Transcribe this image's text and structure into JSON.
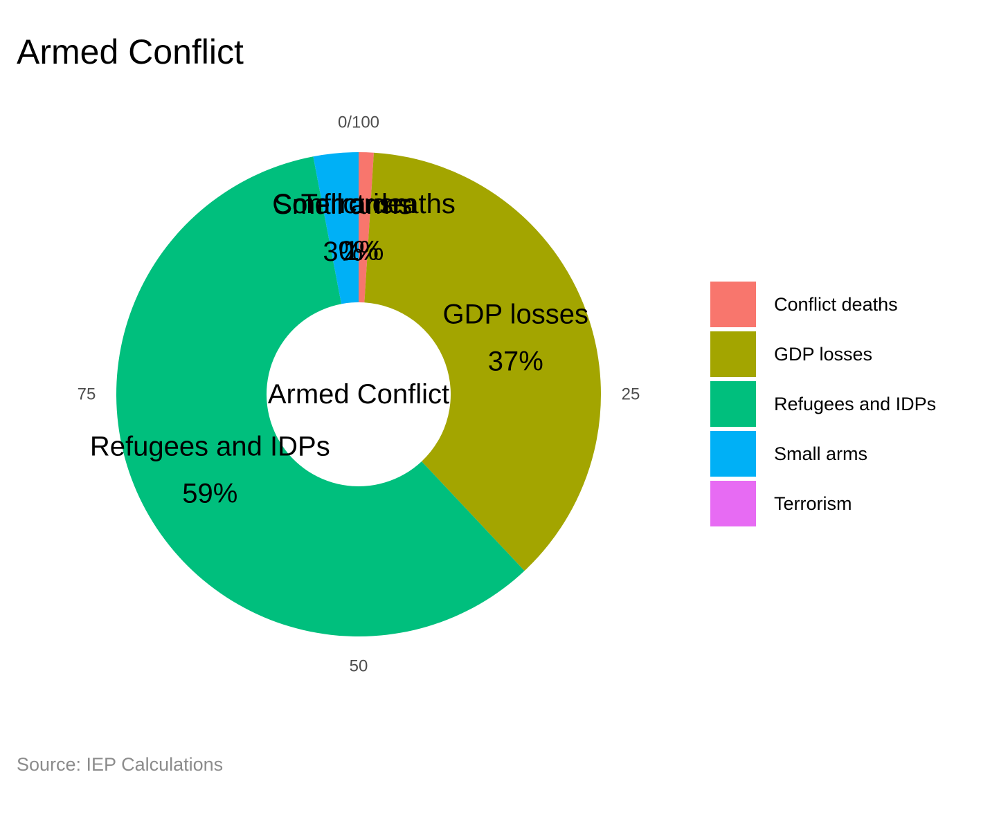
{
  "chart_data": {
    "type": "pie",
    "variant": "donut",
    "title": "Armed Conflict",
    "center_label": "Armed Conflict",
    "caption": "Source: IEP Calculations",
    "slices": [
      {
        "label": "Conflict deaths",
        "value": 1,
        "percent_label": "1%",
        "color": "#F8766D"
      },
      {
        "label": "GDP losses",
        "value": 37,
        "percent_label": "37%",
        "color": "#A3A500"
      },
      {
        "label": "Refugees and IDPs",
        "value": 59,
        "percent_label": "59%",
        "color": "#00BF7D"
      },
      {
        "label": "Small arms",
        "value": 3,
        "percent_label": "3%",
        "color": "#00B0F6"
      },
      {
        "label": "Terrorism",
        "value": 0,
        "percent_label": "0%",
        "color": "#E76BF3"
      }
    ],
    "angular_axis": {
      "ticks": [
        "0/100",
        "25",
        "50",
        "75"
      ],
      "direction": "clockwise",
      "range": [
        0,
        100
      ]
    },
    "legend_position": "right"
  }
}
